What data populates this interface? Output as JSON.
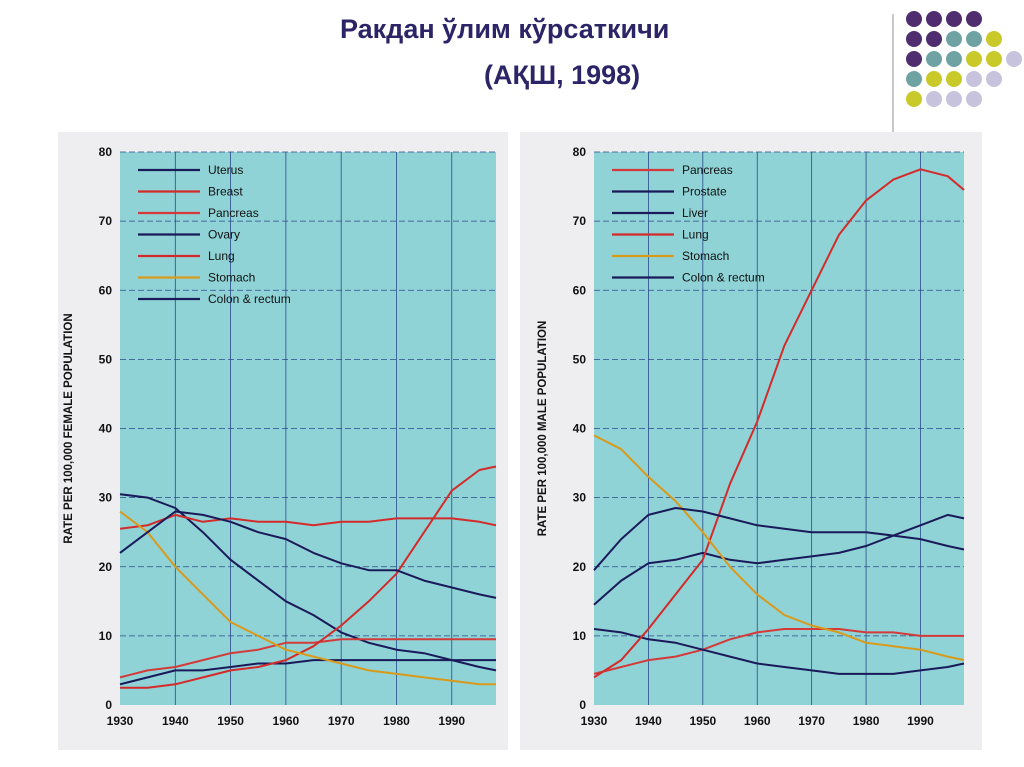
{
  "slide": {
    "title_line1": "Ракдан ўлим кўрсаткичи",
    "title_line2": "(АҚШ, 1998)"
  },
  "colors": {
    "title": "#2b2466",
    "plot_bg": "#8fd3d6",
    "purple_dot": "#4f2d6e",
    "teal_dot": "#6fa3a3",
    "olive_dot": "#c9c92a",
    "lavender_dot": "#c7c3dd"
  },
  "chart_data": [
    {
      "type": "line",
      "title": "",
      "xlabel": "",
      "ylabel": "RATE PER 100,000 FEMALE POPULATION",
      "xlim": [
        1930,
        1998
      ],
      "ylim": [
        0,
        80
      ],
      "xticks": [
        1930,
        1940,
        1950,
        1960,
        1970,
        1980,
        1990
      ],
      "yticks": [
        0,
        10,
        20,
        30,
        40,
        50,
        60,
        70,
        80
      ],
      "grid": true,
      "legend_position": "top-left",
      "series": [
        {
          "name": "Uterus",
          "color": "#1a1a5a",
          "x": [
            1930,
            1935,
            1940,
            1945,
            1950,
            1955,
            1960,
            1965,
            1970,
            1975,
            1980,
            1985,
            1990,
            1995,
            1998
          ],
          "y": [
            30.5,
            30,
            28.5,
            25,
            21,
            18,
            15,
            13,
            10.5,
            9,
            8,
            7.5,
            6.5,
            5.5,
            5
          ]
        },
        {
          "name": "Breast",
          "color": "#d42a2a",
          "x": [
            1930,
            1935,
            1940,
            1945,
            1950,
            1955,
            1960,
            1965,
            1970,
            1975,
            1980,
            1985,
            1990,
            1995,
            1998
          ],
          "y": [
            25.5,
            26,
            27.5,
            26.5,
            27,
            26.5,
            26.5,
            26,
            26.5,
            26.5,
            27,
            27,
            27,
            26.5,
            26
          ]
        },
        {
          "name": "Pancreas",
          "color": "#d43a3a",
          "x": [
            1930,
            1935,
            1940,
            1945,
            1950,
            1955,
            1960,
            1965,
            1970,
            1975,
            1980,
            1985,
            1990,
            1995,
            1998
          ],
          "y": [
            4,
            5,
            5.5,
            6.5,
            7.5,
            8,
            9,
            9,
            9.5,
            9.5,
            9.5,
            9.5,
            9.5,
            9.5,
            9.5
          ]
        },
        {
          "name": "Ovary",
          "color": "#1a1a5a",
          "x": [
            1930,
            1935,
            1940,
            1945,
            1950,
            1955,
            1960,
            1965,
            1970,
            1975,
            1980,
            1985,
            1990,
            1995,
            1998
          ],
          "y": [
            3,
            4,
            5,
            5,
            5.5,
            6,
            6,
            6.5,
            6.5,
            6.5,
            6.5,
            6.5,
            6.5,
            6.5,
            6.5
          ]
        },
        {
          "name": "Lung",
          "color": "#d42a2a",
          "x": [
            1930,
            1935,
            1940,
            1945,
            1950,
            1955,
            1960,
            1965,
            1970,
            1975,
            1980,
            1985,
            1990,
            1995,
            1998
          ],
          "y": [
            2.5,
            2.5,
            3,
            4,
            5,
            5.5,
            6.5,
            8.5,
            11.5,
            15,
            19,
            25,
            31,
            34,
            34.5
          ]
        },
        {
          "name": "Stomach",
          "color": "#d99a1c",
          "x": [
            1930,
            1935,
            1940,
            1945,
            1950,
            1955,
            1960,
            1965,
            1970,
            1975,
            1980,
            1985,
            1990,
            1995,
            1998
          ],
          "y": [
            28,
            25,
            20,
            16,
            12,
            10,
            8,
            7,
            6,
            5,
            4.5,
            4,
            3.5,
            3,
            3
          ]
        },
        {
          "name": "Colon & rectum",
          "color": "#1a1a5a",
          "x": [
            1930,
            1935,
            1940,
            1945,
            1950,
            1955,
            1960,
            1965,
            1970,
            1975,
            1980,
            1985,
            1990,
            1995,
            1998
          ],
          "y": [
            22,
            25,
            28,
            27.5,
            26.5,
            25,
            24,
            22,
            20.5,
            19.5,
            19.5,
            18,
            17,
            16,
            15.5
          ]
        }
      ]
    },
    {
      "type": "line",
      "title": "",
      "xlabel": "",
      "ylabel": "RATE PER 100,000 MALE POPULATION",
      "xlim": [
        1930,
        1998
      ],
      "ylim": [
        0,
        80
      ],
      "xticks": [
        1930,
        1940,
        1950,
        1960,
        1970,
        1980,
        1990
      ],
      "yticks": [
        0,
        10,
        20,
        30,
        40,
        50,
        60,
        70,
        80
      ],
      "grid": true,
      "legend_position": "top-left",
      "series": [
        {
          "name": "Pancreas",
          "color": "#d43a3a",
          "x": [
            1930,
            1935,
            1940,
            1945,
            1950,
            1955,
            1960,
            1965,
            1970,
            1975,
            1980,
            1985,
            1990,
            1995,
            1998
          ],
          "y": [
            4.5,
            5.5,
            6.5,
            7,
            8,
            9.5,
            10.5,
            11,
            11,
            11,
            10.5,
            10.5,
            10,
            10,
            10
          ]
        },
        {
          "name": "Prostate",
          "color": "#1a1a5a",
          "x": [
            1930,
            1935,
            1940,
            1945,
            1950,
            1955,
            1960,
            1965,
            1970,
            1975,
            1980,
            1985,
            1990,
            1995,
            1998
          ],
          "y": [
            14.5,
            18,
            20.5,
            21,
            22,
            21,
            20.5,
            21,
            21.5,
            22,
            23,
            24.5,
            26,
            27.5,
            27
          ]
        },
        {
          "name": "Liver",
          "color": "#1a1a5a",
          "x": [
            1930,
            1935,
            1940,
            1945,
            1950,
            1955,
            1960,
            1965,
            1970,
            1975,
            1980,
            1985,
            1990,
            1995,
            1998
          ],
          "y": [
            11,
            10.5,
            9.5,
            9,
            8,
            7,
            6,
            5.5,
            5,
            4.5,
            4.5,
            4.5,
            5,
            5.5,
            6
          ]
        },
        {
          "name": "Lung",
          "color": "#d42a2a",
          "x": [
            1930,
            1935,
            1940,
            1945,
            1950,
            1955,
            1960,
            1965,
            1970,
            1975,
            1980,
            1985,
            1990,
            1995,
            1998
          ],
          "y": [
            4,
            6.5,
            11,
            16,
            21,
            32,
            41,
            52,
            60,
            68,
            73,
            76,
            77.5,
            76.5,
            74.5
          ]
        },
        {
          "name": "Stomach",
          "color": "#d99a1c",
          "x": [
            1930,
            1935,
            1940,
            1945,
            1950,
            1955,
            1960,
            1965,
            1970,
            1975,
            1980,
            1985,
            1990,
            1995,
            1998
          ],
          "y": [
            39,
            37,
            33,
            29.5,
            25,
            20,
            16,
            13,
            11.5,
            10.5,
            9,
            8.5,
            8,
            7,
            6.5
          ]
        },
        {
          "name": "Colon & rectum",
          "color": "#1a1a5a",
          "x": [
            1930,
            1935,
            1940,
            1945,
            1950,
            1955,
            1960,
            1965,
            1970,
            1975,
            1980,
            1985,
            1990,
            1995,
            1998
          ],
          "y": [
            19.5,
            24,
            27.5,
            28.5,
            28,
            27,
            26,
            25.5,
            25,
            25,
            25,
            24.5,
            24,
            23,
            22.5
          ]
        }
      ]
    }
  ]
}
